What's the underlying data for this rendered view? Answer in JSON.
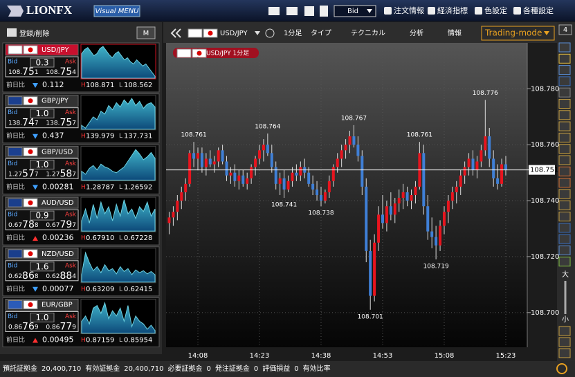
{
  "header": {
    "logo": "LIONFX",
    "menu_button": "Visual MENU",
    "price_select": "Bid",
    "menu": [
      "注文情報",
      "経済指標",
      "色設定",
      "各種設定"
    ]
  },
  "sidebar": {
    "register_label": "登録/削除",
    "mode_button": "M",
    "bid_label": "Bid",
    "ask_label": "Ask",
    "change_label": "前日比",
    "high_label": "H",
    "low_label": "L",
    "pairs": [
      {
        "name": "USD/JPY",
        "spread": "0.3",
        "bid": "108.751",
        "ask": "108.754",
        "change": "0.112",
        "change_dir": "down",
        "selected": true,
        "high": {
          "value": 108.871,
          "label": "108.871"
        },
        "low": {
          "value": 108.562,
          "label": "108.562"
        },
        "spark": [
          108.8,
          108.84,
          108.86,
          108.82,
          108.78,
          108.8,
          108.85,
          108.87,
          108.83,
          108.79,
          108.76,
          108.8,
          108.82,
          108.78,
          108.74,
          108.76,
          108.72,
          108.7,
          108.74,
          108.71,
          108.68,
          108.7,
          108.66,
          108.62,
          108.58
        ]
      },
      {
        "name": "GBP/JPY",
        "spread": "1.0",
        "bid": "138.747",
        "ask": "138.757",
        "change": "0.437",
        "change_dir": "down",
        "selected": false,
        "high": {
          "value": 139.979,
          "label": "139.979"
        },
        "low": {
          "value": 137.731,
          "label": "137.731"
        },
        "spark": [
          138.0,
          137.8,
          138.2,
          138.6,
          138.4,
          139.0,
          138.8,
          139.4,
          139.1,
          139.6,
          139.3,
          139.8,
          139.5,
          139.9,
          139.4,
          139.7,
          139.2,
          139.5,
          139.6,
          139.3
        ]
      },
      {
        "name": "GBP/USD",
        "spread": "1.0",
        "bid": "1.27577",
        "ask": "1.27587",
        "change": "0.00281",
        "change_dir": "down",
        "selected": false,
        "high": {
          "value": 1.28787,
          "label": "1.28787"
        },
        "low": {
          "value": 1.26592,
          "label": "1.26592"
        },
        "spark": [
          1.272,
          1.27,
          1.274,
          1.276,
          1.273,
          1.277,
          1.275,
          1.274,
          1.272,
          1.271,
          1.273,
          1.275,
          1.279,
          1.283,
          1.287,
          1.284,
          1.28,
          1.282,
          1.285,
          1.281
        ]
      },
      {
        "name": "AUD/USD",
        "spread": "0.9",
        "bid": "0.67788",
        "ask": "0.67797",
        "change": "0.00236",
        "change_dir": "up",
        "selected": false,
        "high": {
          "value": 0.6791,
          "label": "0.67910"
        },
        "low": {
          "value": 0.67228,
          "label": "0.67228"
        },
        "spark": [
          0.6745,
          0.677,
          0.674,
          0.678,
          0.675,
          0.6785,
          0.676,
          0.6775,
          0.6745,
          0.678,
          0.6755,
          0.679,
          0.676,
          0.677,
          0.675,
          0.6775,
          0.6765,
          0.6785,
          0.6755,
          0.677
        ]
      },
      {
        "name": "NZD/USD",
        "spread": "1.6",
        "bid": "0.62868",
        "ask": "0.62884",
        "change": "0.00077",
        "change_dir": "down",
        "selected": false,
        "high": {
          "value": 0.63209,
          "label": "0.63209"
        },
        "low": {
          "value": 0.62415,
          "label": "0.62415"
        },
        "spark": [
          0.626,
          0.6315,
          0.629,
          0.627,
          0.628,
          0.6265,
          0.6285,
          0.627,
          0.6275,
          0.6262,
          0.628,
          0.6268,
          0.6275,
          0.626,
          0.6272,
          0.6265,
          0.627,
          0.6262,
          0.6268,
          0.626
        ]
      },
      {
        "name": "EUR/GBP",
        "spread": "1.0",
        "bid": "0.86769",
        "ask": "0.86779",
        "change": "0.00495",
        "change_dir": "up",
        "selected": false,
        "high": {
          "value": 0.87159,
          "label": "0.87159"
        },
        "low": {
          "value": 0.85954,
          "label": "0.85954"
        },
        "spark": [
          0.864,
          0.866,
          0.863,
          0.869,
          0.87,
          0.867,
          0.871,
          0.865,
          0.868,
          0.866,
          0.869,
          0.864,
          0.87,
          0.862,
          0.866,
          0.864,
          0.863,
          0.861,
          0.8625,
          0.8605
        ]
      }
    ]
  },
  "toolbar": {
    "pair": "USD/JPY",
    "timeframe": "1分足",
    "type_label": "タイプ",
    "technical_label": "テクニカル",
    "analysis_label": "分析",
    "info_label": "情報",
    "mode": "Trading-mode"
  },
  "main_chart": {
    "type": "candlestick",
    "badge": "USD/JPY 1分足",
    "grid": true,
    "colors": {
      "up": "#e8141e",
      "down": "#3f7fd6"
    },
    "categories": [
      null,
      null,
      null,
      null,
      null,
      null,
      null,
      "14:08",
      null,
      null,
      null,
      null,
      null,
      null,
      null,
      null,
      null,
      null,
      null,
      null,
      null,
      null,
      "14:23",
      null,
      null,
      null,
      null,
      null,
      null,
      null,
      null,
      null,
      null,
      null,
      null,
      null,
      null,
      "14:38",
      null,
      null,
      null,
      null,
      null,
      null,
      null,
      null,
      null,
      null,
      null,
      null,
      null,
      null,
      "14:53",
      null,
      null,
      null,
      null,
      null,
      null,
      null,
      null,
      null,
      null,
      null,
      null,
      null,
      null,
      "15:08",
      null,
      null,
      null,
      null,
      null,
      null,
      null,
      null,
      null,
      null,
      null,
      null,
      null,
      null,
      "15:23"
    ],
    "candles": [
      [
        108.732,
        108.736,
        108.728,
        108.734
      ],
      [
        108.734,
        108.738,
        108.731,
        108.736
      ],
      [
        108.736,
        108.742,
        108.733,
        108.74
      ],
      [
        108.74,
        108.745,
        108.737,
        108.743
      ],
      [
        108.743,
        108.748,
        108.74,
        108.746
      ],
      [
        108.746,
        108.758,
        108.745,
        108.757
      ],
      [
        108.757,
        108.761,
        108.752,
        108.755
      ],
      [
        108.755,
        108.759,
        108.751,
        108.757
      ],
      [
        108.757,
        108.759,
        108.75,
        108.752
      ],
      [
        108.752,
        108.757,
        108.749,
        108.755
      ],
      [
        108.755,
        108.758,
        108.752,
        108.753
      ],
      [
        108.753,
        108.756,
        108.75,
        108.754
      ],
      [
        108.754,
        108.759,
        108.752,
        108.758
      ],
      [
        108.758,
        108.76,
        108.753,
        108.754
      ],
      [
        108.754,
        108.756,
        108.747,
        108.749
      ],
      [
        108.749,
        108.752,
        108.746,
        108.75
      ],
      [
        108.75,
        108.753,
        108.745,
        108.747
      ],
      [
        108.747,
        108.751,
        108.744,
        108.749
      ],
      [
        108.749,
        108.751,
        108.745,
        108.746
      ],
      [
        108.746,
        108.75,
        108.744,
        108.748
      ],
      [
        108.748,
        108.753,
        108.746,
        108.752
      ],
      [
        108.752,
        108.756,
        108.749,
        108.755
      ],
      [
        108.755,
        108.76,
        108.753,
        108.758
      ],
      [
        108.758,
        108.762,
        108.754,
        108.76
      ],
      [
        108.76,
        108.764,
        108.756,
        108.757
      ],
      [
        108.757,
        108.76,
        108.75,
        108.752
      ],
      [
        108.752,
        108.754,
        108.744,
        108.746
      ],
      [
        108.746,
        108.75,
        108.742,
        108.748
      ],
      [
        108.748,
        108.751,
        108.741,
        108.744
      ],
      [
        108.744,
        108.749,
        108.743,
        108.747
      ],
      [
        108.747,
        108.752,
        108.745,
        108.75
      ],
      [
        108.75,
        108.753,
        108.747,
        108.749
      ],
      [
        108.749,
        108.754,
        108.747,
        108.752
      ],
      [
        108.752,
        108.755,
        108.748,
        108.75
      ],
      [
        108.75,
        108.752,
        108.745,
        108.746
      ],
      [
        108.746,
        108.749,
        108.742,
        108.744
      ],
      [
        108.744,
        108.747,
        108.74,
        108.742
      ],
      [
        108.742,
        108.745,
        108.738,
        108.74
      ],
      [
        108.74,
        108.744,
        108.739,
        108.743
      ],
      [
        108.743,
        108.749,
        108.741,
        108.747
      ],
      [
        108.747,
        108.753,
        108.745,
        108.752
      ],
      [
        108.752,
        108.757,
        108.75,
        108.755
      ],
      [
        108.755,
        108.76,
        108.752,
        108.758
      ],
      [
        108.758,
        108.762,
        108.755,
        108.76
      ],
      [
        108.76,
        108.765,
        108.757,
        108.763
      ],
      [
        108.763,
        108.767,
        108.759,
        108.76
      ],
      [
        108.76,
        108.763,
        108.754,
        108.756
      ],
      [
        108.756,
        108.758,
        108.742,
        108.745
      ],
      [
        108.745,
        108.748,
        108.718,
        108.722
      ],
      [
        108.722,
        108.726,
        108.701,
        108.706
      ],
      [
        108.706,
        108.728,
        108.704,
        108.725
      ],
      [
        108.725,
        108.738,
        108.722,
        108.735
      ],
      [
        108.735,
        108.742,
        108.73,
        108.732
      ],
      [
        108.732,
        108.74,
        108.729,
        108.738
      ],
      [
        108.738,
        108.743,
        108.733,
        108.735
      ],
      [
        108.735,
        108.741,
        108.732,
        108.739
      ],
      [
        108.739,
        108.744,
        108.736,
        108.741
      ],
      [
        108.741,
        108.746,
        108.737,
        108.743
      ],
      [
        108.743,
        108.745,
        108.738,
        108.74
      ],
      [
        108.74,
        108.744,
        108.737,
        108.742
      ],
      [
        108.742,
        108.747,
        108.739,
        108.745
      ],
      [
        108.745,
        108.761,
        108.744,
        108.757
      ],
      [
        108.757,
        108.76,
        108.735,
        108.738
      ],
      [
        108.738,
        108.742,
        108.726,
        108.729
      ],
      [
        108.729,
        108.734,
        108.723,
        108.727
      ],
      [
        108.727,
        108.731,
        108.719,
        108.724
      ],
      [
        108.724,
        108.733,
        108.722,
        108.731
      ],
      [
        108.731,
        108.738,
        108.728,
        108.736
      ],
      [
        108.736,
        108.742,
        108.732,
        108.74
      ],
      [
        108.74,
        108.745,
        108.737,
        108.743
      ],
      [
        108.743,
        108.747,
        108.739,
        108.745
      ],
      [
        108.745,
        108.751,
        108.742,
        108.749
      ],
      [
        108.749,
        108.754,
        108.746,
        108.752
      ],
      [
        108.752,
        108.757,
        108.749,
        108.755
      ],
      [
        108.755,
        108.758,
        108.749,
        108.751
      ],
      [
        108.751,
        108.756,
        108.748,
        108.754
      ],
      [
        108.754,
        108.76,
        108.752,
        108.758
      ],
      [
        108.758,
        108.776,
        108.756,
        108.763
      ],
      [
        108.763,
        108.766,
        108.752,
        108.755
      ],
      [
        108.755,
        108.758,
        108.745,
        108.748
      ],
      [
        108.748,
        108.753,
        108.744,
        108.746
      ],
      [
        108.746,
        108.755,
        108.745,
        108.753
      ],
      [
        108.753,
        108.756,
        108.749,
        108.751
      ]
    ],
    "annotations": [
      108.761,
      108.764,
      108.741,
      108.738,
      108.767,
      108.701,
      108.761,
      108.719,
      108.776
    ],
    "current_price": 108.751,
    "ylim": [
      108.6876,
      108.7964
    ],
    "yticks": [
      {
        "value": 108.78,
        "label": "108.780"
      },
      {
        "value": 108.76,
        "label": "108.760"
      },
      {
        "value": 108.74,
        "label": "108.740"
      },
      {
        "value": 108.72,
        "label": "108.720"
      },
      {
        "value": 108.7,
        "label": "108.700"
      }
    ]
  },
  "side_tools": {
    "counter": "4",
    "zoom_in": "大",
    "zoom_out": "小"
  },
  "status_bar": [
    {
      "label": "預託証拠金",
      "value": "20,400,710"
    },
    {
      "label": "有効証拠金",
      "value": "20,400,710"
    },
    {
      "label": "必要証拠金",
      "value": "0"
    },
    {
      "label": "発注証拠金",
      "value": "0"
    },
    {
      "label": "評価損益",
      "value": "0"
    },
    {
      "label": "有効比率"
    }
  ]
}
